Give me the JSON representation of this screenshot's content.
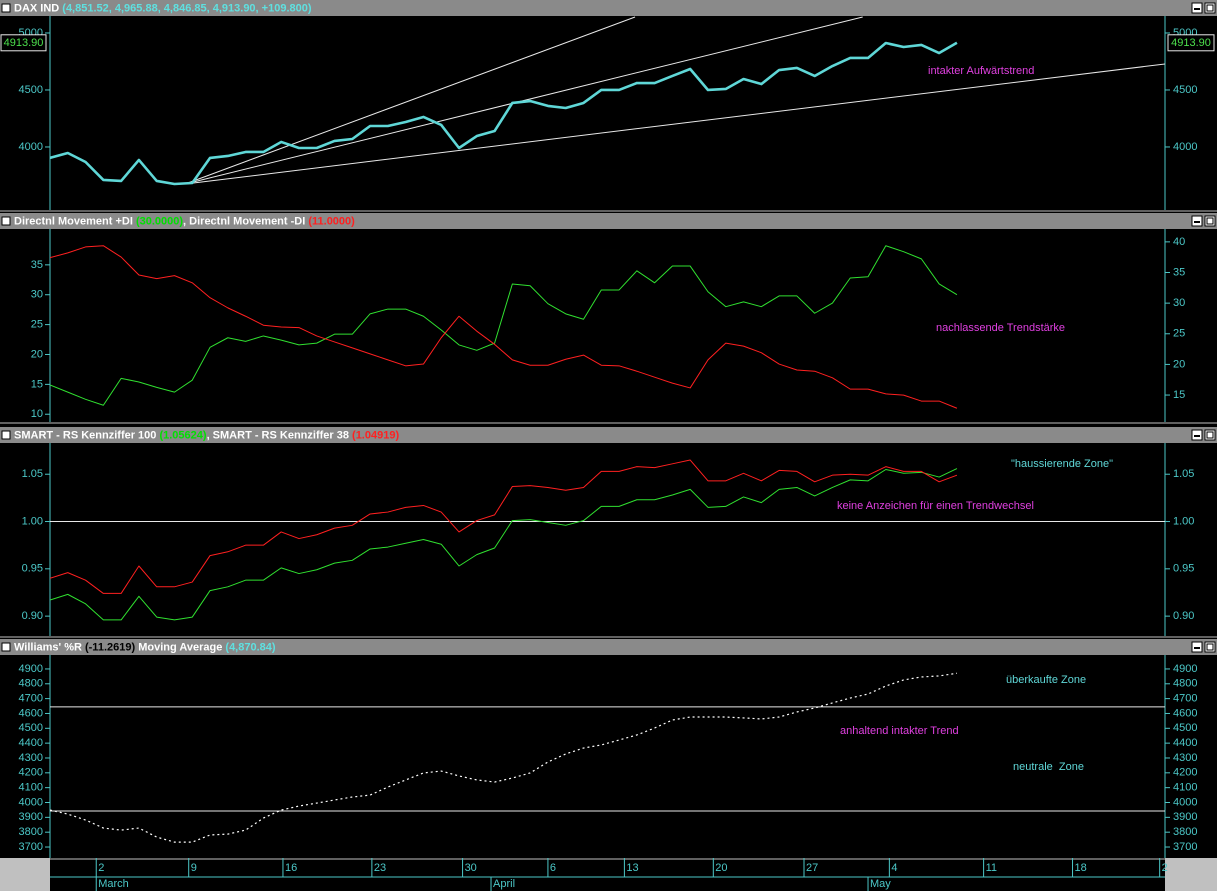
{
  "x_axis": {
    "x": [
      0,
      1,
      2,
      3,
      4,
      5,
      6,
      7,
      8,
      9,
      10,
      11,
      12,
      13,
      14,
      15,
      16,
      17,
      18,
      19,
      20,
      21,
      22,
      23,
      24,
      25,
      26,
      27,
      28,
      29,
      30,
      31,
      32,
      33,
      34,
      35,
      36,
      37,
      38,
      39,
      40,
      41,
      42,
      43,
      44,
      45,
      46,
      47,
      48,
      49,
      50,
      51
    ],
    "xlim": [
      0,
      62.7
    ],
    "xticks": [
      {
        "value": 2.6,
        "label": "2"
      },
      {
        "value": 7.8,
        "label": "9"
      },
      {
        "value": 13.1,
        "label": "16"
      },
      {
        "value": 18.1,
        "label": "23"
      },
      {
        "value": 23.2,
        "label": "30"
      },
      {
        "value": 28.0,
        "label": "6"
      },
      {
        "value": 32.3,
        "label": "13"
      },
      {
        "value": 37.3,
        "label": "20"
      },
      {
        "value": 42.4,
        "label": "27"
      },
      {
        "value": 47.2,
        "label": "4"
      },
      {
        "value": 52.5,
        "label": "11"
      },
      {
        "value": 57.5,
        "label": "18"
      },
      {
        "value": 62.4,
        "label": "2"
      }
    ],
    "months": [
      {
        "value": 2.6,
        "label": "March"
      },
      {
        "value": 24.8,
        "label": "April"
      },
      {
        "value": 46.0,
        "label": "May"
      }
    ]
  },
  "chart_data": [
    {
      "type": "line",
      "title_parts": [
        {
          "text": "DAX IND ",
          "color": "#ffffff"
        },
        {
          "text": "(4,851.52, 4,965.88, 4,846.85, 4,913.90, +109.800)",
          "color": "#5fe0e0"
        }
      ],
      "ylim": [
        3447,
        5149
      ],
      "yticks": [
        4000,
        4500,
        5000
      ],
      "series": [
        {
          "color": "#5fd7d7",
          "style": "thick",
          "values": [
            3904,
            3947,
            3868,
            3711,
            3702,
            3886,
            3702,
            3675,
            3684,
            3904,
            3921,
            3956,
            3956,
            4044,
            3991,
            3991,
            4053,
            4070,
            4184,
            4184,
            4219,
            4263,
            4193,
            3991,
            4096,
            4140,
            4386,
            4403,
            4360,
            4342,
            4386,
            4500,
            4500,
            4561,
            4561,
            4623,
            4684,
            4500,
            4509,
            4596,
            4552,
            4675,
            4693,
            4623,
            4710,
            4781,
            4781,
            4912,
            4877,
            4895,
            4824,
            4914
          ]
        }
      ],
      "trendlines": [
        {
          "x": [
            7.6,
            32.9
          ],
          "y": [
            3675,
            5140
          ]
        },
        {
          "x": [
            7.6,
            45.7
          ],
          "y": [
            3675,
            5140
          ]
        },
        {
          "x": [
            7.6,
            62.7
          ],
          "y": [
            3675,
            4728
          ]
        }
      ],
      "last_value": 4913.9,
      "last_value_label": "4913.90",
      "annotations": [
        {
          "text": "intakter Aufwärtstrend",
          "color": "#e040e0"
        }
      ]
    },
    {
      "type": "line",
      "title_parts": [
        {
          "text": "Directnl Movement +DI ",
          "color": "#ffffff"
        },
        {
          "text": "(30.0000)",
          "color": "#00e000"
        },
        {
          "text": ", Directnl Movement -DI ",
          "color": "#ffffff"
        },
        {
          "text": "(11.0000)",
          "color": "#ff2020"
        }
      ],
      "ylim": [
        8.7,
        41.0
      ],
      "yticks": [
        10,
        15,
        20,
        25,
        30,
        35
      ],
      "y2lim": [
        10.6,
        42.1
      ],
      "y2ticks": [
        15,
        20,
        25,
        30,
        35,
        40
      ],
      "series": [
        {
          "color": "#30e030",
          "style": "thin",
          "values": [
            14.9,
            13.7,
            12.5,
            11.5,
            16.0,
            15.4,
            14.5,
            13.7,
            15.7,
            21.2,
            22.8,
            22.2,
            23.1,
            22.4,
            21.6,
            21.9,
            23.4,
            23.4,
            26.8,
            27.6,
            27.6,
            26.4,
            24.1,
            21.6,
            20.7,
            21.9,
            31.8,
            31.5,
            28.5,
            26.8,
            25.9,
            30.8,
            30.8,
            34.0,
            32.0,
            34.8,
            34.8,
            30.5,
            28.0,
            28.8,
            28.0,
            29.8,
            29.8,
            26.9,
            28.6,
            32.8,
            33.0,
            38.2,
            37.2,
            36.0,
            31.8,
            30
          ]
        },
        {
          "color": "#ff2020",
          "style": "thin",
          "values": [
            36.2,
            37.0,
            38.0,
            38.2,
            36.3,
            33.3,
            32.7,
            33.2,
            32.0,
            29.5,
            27.8,
            26.4,
            24.9,
            24.6,
            24.5,
            23.1,
            22.1,
            21.1,
            20.1,
            19.1,
            18.1,
            18.4,
            22.8,
            26.4,
            23.9,
            21.7,
            19.1,
            18.2,
            18.2,
            19.2,
            19.9,
            18.2,
            18.1,
            17.2,
            16.2,
            15.2,
            14.4,
            19.1,
            21.9,
            21.4,
            20.3,
            18.4,
            17.4,
            17.2,
            16.1,
            14.2,
            14.2,
            13.4,
            13.2,
            12.2,
            12.2,
            11.0
          ]
        }
      ],
      "annotations": [
        {
          "text": "nachlassende Trendstärke",
          "color": "#e040e0"
        }
      ]
    },
    {
      "type": "line",
      "title_parts": [
        {
          "text": "SMART - RS Kennziffer 100 ",
          "color": "#ffffff"
        },
        {
          "text": "(1.05624)",
          "color": "#00e000"
        },
        {
          "text": ", SMART - RS Kennziffer 38 ",
          "color": "#ffffff"
        },
        {
          "text": "(1.04919)",
          "color": "#ff2020"
        }
      ],
      "ylim": [
        0.879,
        1.083
      ],
      "yticks": [
        {
          "value": 0.9,
          "label": "0.90"
        },
        0.95,
        {
          "value": 1,
          "label": "1.00"
        },
        1.05
      ],
      "levels": [
        1
      ],
      "series": [
        {
          "color": "#30e030",
          "style": "thin",
          "values": [
            0.917,
            0.923,
            0.913,
            0.896,
            0.896,
            0.921,
            0.899,
            0.896,
            0.899,
            0.927,
            0.931,
            0.938,
            0.938,
            0.951,
            0.945,
            0.949,
            0.956,
            0.959,
            0.971,
            0.973,
            0.977,
            0.981,
            0.976,
            0.953,
            0.965,
            0.972,
            1.001,
            1.002,
            0.999,
            0.996,
            1.001,
            1.016,
            1.016,
            1.023,
            1.023,
            1.028,
            1.034,
            1.015,
            1.016,
            1.026,
            1.02,
            1.034,
            1.036,
            1.027,
            1.036,
            1.044,
            1.043,
            1.055,
            1.051,
            1.052,
            1.047,
            1.056
          ]
        },
        {
          "color": "#ff2020",
          "style": "thin",
          "values": [
            0.94,
            0.946,
            0.938,
            0.924,
            0.924,
            0.953,
            0.931,
            0.931,
            0.936,
            0.964,
            0.968,
            0.975,
            0.975,
            0.989,
            0.982,
            0.986,
            0.993,
            0.996,
            1.008,
            1.01,
            1.015,
            1.017,
            1.01,
            0.989,
            1.001,
            1.007,
            1.037,
            1.038,
            1.036,
            1.033,
            1.036,
            1.053,
            1.053,
            1.058,
            1.057,
            1.061,
            1.065,
            1.043,
            1.043,
            1.051,
            1.043,
            1.054,
            1.053,
            1.042,
            1.049,
            1.05,
            1.049,
            1.058,
            1.053,
            1.053,
            1.042,
            1.049
          ]
        }
      ],
      "annotations": [
        {
          "text": "\"haussierende Zone\"",
          "color": "#5fd7d7"
        },
        {
          "text": "keine Anzeichen für einen Trendwechsel",
          "color": "#e040e0"
        }
      ]
    },
    {
      "type": "line",
      "title_parts": [
        {
          "text": "Williams' %R ",
          "color": "#ffffff"
        },
        {
          "text": "(-11.2619)",
          "color": "#000000"
        },
        {
          "text": " Moving Average ",
          "color": "#ffffff"
        },
        {
          "text": "(4,870.84)",
          "color": "#5fe0e0"
        }
      ],
      "ylim": [
        3626,
        4994
      ],
      "yticks": [
        3700,
        3800,
        3900,
        4000,
        4100,
        4200,
        4300,
        4400,
        4500,
        4600,
        4700,
        4800,
        4900
      ],
      "levels": [
        4644,
        3943
      ],
      "series": [
        {
          "color": "#ffffff",
          "style": "dotted",
          "values": [
            3949,
            3922,
            3882,
            3828,
            3814,
            3828,
            3767,
            3733,
            3733,
            3781,
            3787,
            3814,
            3895,
            3949,
            3976,
            3996,
            4017,
            4037,
            4050,
            4104,
            4152,
            4199,
            4212,
            4179,
            4152,
            4138,
            4165,
            4199,
            4273,
            4327,
            4367,
            4388,
            4421,
            4455,
            4502,
            4556,
            4576,
            4576,
            4576,
            4570,
            4563,
            4576,
            4610,
            4637,
            4671,
            4704,
            4731,
            4785,
            4826,
            4846,
            4853,
            4871
          ]
        }
      ],
      "annotations": [
        {
          "text": "überkaufte Zone",
          "color": "#5fd7d7"
        },
        {
          "text": "anhaltend intakter Trend",
          "color": "#e040e0"
        },
        {
          "text": "neutrale  Zone",
          "color": "#5fd7d7"
        }
      ]
    }
  ]
}
